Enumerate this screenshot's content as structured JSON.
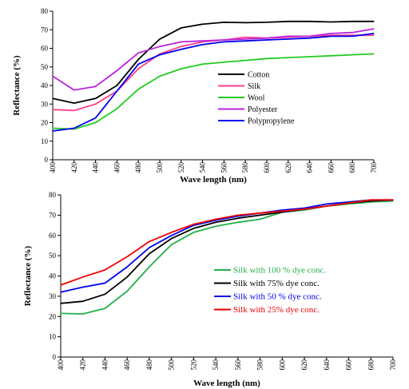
{
  "chart_data": [
    {
      "type": "line",
      "title": "",
      "xlabel": "Wave length (nm)",
      "ylabel": "Reflectance (%)",
      "xlim": [
        400,
        700
      ],
      "ylim": [
        0,
        80
      ],
      "x_ticks": [
        400,
        420,
        440,
        460,
        480,
        500,
        520,
        540,
        560,
        580,
        600,
        620,
        640,
        660,
        680,
        700
      ],
      "y_ticks": [
        0,
        10,
        20,
        30,
        40,
        50,
        60,
        70,
        80
      ],
      "grid": false,
      "legend_position": "center-right",
      "x": [
        400,
        420,
        440,
        460,
        480,
        500,
        520,
        540,
        560,
        580,
        600,
        620,
        640,
        660,
        680,
        700
      ],
      "series": [
        {
          "name": "Cotton",
          "color": "#000000",
          "values": [
            33,
            30.5,
            33,
            40,
            54,
            65,
            71,
            73,
            74,
            73.8,
            74,
            74.5,
            74.5,
            74.2,
            74.5,
            74.5
          ]
        },
        {
          "name": "Silk",
          "color": "#ff3d8c",
          "values": [
            27,
            26.5,
            30,
            37,
            49,
            57,
            61,
            63.5,
            64.5,
            66,
            65.5,
            66,
            66.5,
            67,
            67,
            67
          ]
        },
        {
          "name": "Wool",
          "color": "#22cc22",
          "values": [
            17,
            16.5,
            20,
            27.5,
            38,
            45,
            49,
            51.5,
            52.5,
            53.5,
            54.5,
            55,
            55.5,
            56,
            56.5,
            57
          ]
        },
        {
          "name": "Polyester",
          "color": "#bb22dd",
          "values": [
            45,
            37.5,
            39.5,
            48,
            57.5,
            61,
            63.5,
            64,
            64.5,
            65,
            65.5,
            66.5,
            66.5,
            68,
            68.5,
            70.5
          ]
        },
        {
          "name": "Polypropylene",
          "color": "#0000ee",
          "values": [
            15.5,
            17,
            22.5,
            37,
            51.5,
            56.5,
            59.5,
            62,
            63.5,
            64,
            64.5,
            65,
            65.5,
            66.5,
            66.5,
            68
          ]
        }
      ]
    },
    {
      "type": "line",
      "title": "",
      "xlabel": "Wave length (nm)",
      "ylabel": "Reflectance (%)",
      "xlim": [
        400,
        700
      ],
      "ylim": [
        0,
        80
      ],
      "x_ticks": [
        400,
        420,
        440,
        460,
        480,
        500,
        520,
        540,
        560,
        580,
        600,
        620,
        640,
        660,
        680,
        700
      ],
      "y_ticks": [
        0,
        10,
        20,
        30,
        40,
        50,
        60,
        70,
        80
      ],
      "grid": false,
      "legend_position": "bottom-center",
      "x": [
        400,
        420,
        440,
        460,
        480,
        500,
        520,
        540,
        560,
        580,
        600,
        620,
        640,
        660,
        680,
        700
      ],
      "series": [
        {
          "name": "Silk with 100 %  dye conc.",
          "color": "#22b04a",
          "values": [
            21.5,
            21.3,
            24,
            32.5,
            44.5,
            55.5,
            61.5,
            64.5,
            66.5,
            68,
            71.5,
            72.5,
            74.5,
            75.5,
            76.5,
            77
          ]
        },
        {
          "name": "Silk with 75% dye conc.",
          "color": "#000000",
          "values": [
            26.5,
            27.5,
            31,
            39.5,
            51,
            58.5,
            63.5,
            66.5,
            68.5,
            70,
            71.5,
            73,
            74.5,
            76,
            77,
            77.5
          ]
        },
        {
          "name": "Silk with 50 % dye conc.",
          "color": "#0000ee",
          "values": [
            32,
            34.5,
            36.5,
            44.5,
            54,
            60,
            65,
            67.5,
            69.5,
            71,
            72.5,
            73.5,
            75.5,
            76.5,
            77.5,
            77.5
          ]
        },
        {
          "name": "Silk with 25% dye conc.",
          "color": "#ee0000",
          "values": [
            35.5,
            39.5,
            43,
            49.5,
            57,
            61.5,
            65.5,
            68,
            70,
            71,
            72,
            73,
            74.5,
            76,
            77.5,
            77.5
          ]
        }
      ]
    }
  ]
}
